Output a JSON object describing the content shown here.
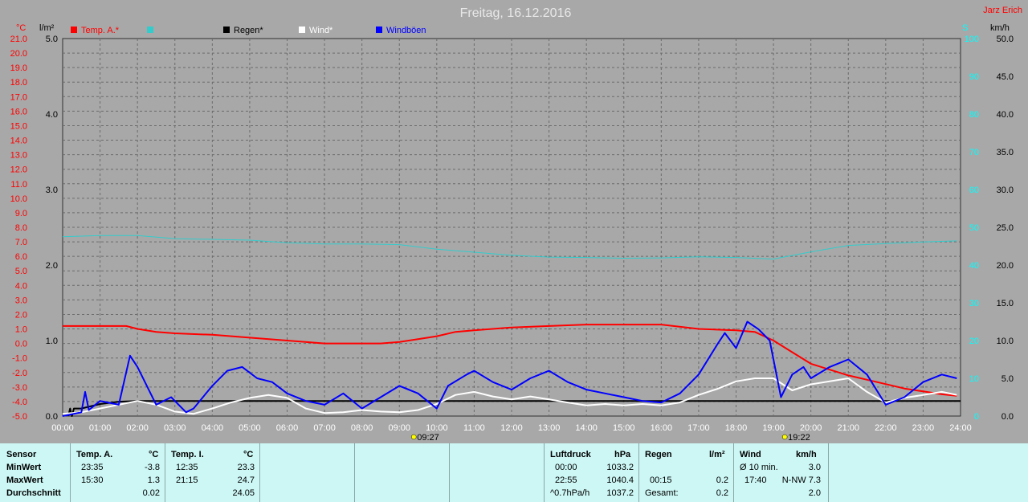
{
  "colors": {
    "background": "#a8a8a8",
    "plot_background": "#a8a8a8",
    "grid": "#6b6b6b",
    "temp": "#ff0000",
    "pressure": "#33cccc",
    "rain": "#000000",
    "wind": "#ffffff",
    "gust": "#0000ff",
    "left_axis": "#ff0000",
    "right_axis": "#00ffff",
    "stats_bg": "#ccf7f5"
  },
  "header": {
    "title": "Freitag, 16.12.2016",
    "author": "Jarz Erich",
    "unit_temp": "°C",
    "unit_rain": "l/m²",
    "unit_pressure": "S",
    "unit_wind": "km/h"
  },
  "sun": {
    "sunrise": "09:27",
    "sunset": "19:22",
    "sunrise_icon": "sunrise-icon",
    "sunset_icon": "sunset-icon"
  },
  "chart_data": {
    "type": "line",
    "title": "Freitag, 16.12.2016",
    "x_range_hours": [
      0,
      24
    ],
    "x_ticks": [
      "00:00",
      "01:00",
      "02:00",
      "03:00",
      "04:00",
      "05:00",
      "06:00",
      "07:00",
      "08:00",
      "09:00",
      "10:00",
      "11:00",
      "12:00",
      "13:00",
      "14:00",
      "15:00",
      "16:00",
      "17:00",
      "18:00",
      "19:00",
      "20:00",
      "21:00",
      "22:00",
      "23:00",
      "24:00"
    ],
    "temp_ticks": [
      "21.0",
      "20.0",
      "19.0",
      "18.0",
      "17.0",
      "16.0",
      "15.0",
      "14.0",
      "13.0",
      "12.0",
      "11.0",
      "10.0",
      "9.0",
      "8.0",
      "7.0",
      "6.0",
      "5.0",
      "4.0",
      "3.0",
      "2.0",
      "1.0",
      "0.0",
      "-1.0",
      "-2.0",
      "-3.0",
      "-4.0",
      "-5.0"
    ],
    "temp_range": [
      -5,
      21
    ],
    "rain_ticks": [
      "5.0",
      "4.0",
      "3.0",
      "2.0",
      "1.0",
      "0.0"
    ],
    "rain_range": [
      0,
      5
    ],
    "wind_ticks": [
      "50.0",
      "45.0",
      "40.0",
      "35.0",
      "30.0",
      "25.0",
      "20.0",
      "15.0",
      "10.0",
      "5.0",
      "0.0"
    ],
    "wind_range": [
      0,
      50
    ],
    "pressure_ticks": [
      "100",
      "90",
      "80",
      "70",
      "60",
      "50",
      "40",
      "30",
      "20",
      "10",
      "0"
    ],
    "pressure_range": [
      0,
      100
    ],
    "grid": true,
    "legend": [
      "Temp. A.*",
      "Regen*",
      "Wind*",
      "Windböen"
    ],
    "legend_colors": [
      "#ff0000",
      "#000000",
      "#ffffff",
      "#0000ff"
    ],
    "legend_pressure_color": "#33cccc",
    "series": [
      {
        "name": "Temp. A.*",
        "axis": "temp",
        "color": "#ff0000",
        "x": [
          0,
          1,
          1.7,
          2,
          2.5,
          3,
          4,
          5,
          6,
          7,
          8,
          8.5,
          9,
          9.5,
          10,
          10.5,
          11,
          12,
          13,
          14,
          15,
          16,
          17,
          18,
          18.5,
          19,
          19.5,
          20,
          21,
          22,
          22.5,
          23,
          23.5,
          23.9
        ],
        "y": [
          1.2,
          1.2,
          1.2,
          1.0,
          0.8,
          0.7,
          0.6,
          0.4,
          0.2,
          0.0,
          0.0,
          0.0,
          0.1,
          0.3,
          0.5,
          0.8,
          0.9,
          1.1,
          1.2,
          1.3,
          1.3,
          1.3,
          1.0,
          0.9,
          0.8,
          0.2,
          -0.6,
          -1.4,
          -2.2,
          -2.8,
          -3.1,
          -3.3,
          -3.5,
          -3.6
        ]
      },
      {
        "name": "Luftdruck",
        "axis": "pressure",
        "color": "#33cccc",
        "x": [
          0,
          1,
          2,
          3,
          4,
          5,
          6,
          7,
          8,
          9,
          10,
          11,
          12,
          13,
          14,
          15,
          16,
          17,
          18,
          19,
          20,
          21,
          22,
          23,
          23.9
        ],
        "y": [
          47.5,
          47.8,
          47.8,
          47.0,
          46.8,
          46.6,
          45.9,
          45.6,
          45.6,
          45.4,
          44.2,
          43.4,
          42.6,
          42.1,
          42.0,
          41.8,
          41.9,
          42.2,
          42.0,
          41.6,
          43.5,
          45.2,
          45.7,
          46.1,
          46.4
        ]
      },
      {
        "name": "Regen*",
        "axis": "rain",
        "color": "#000000",
        "x": [
          0.15,
          0.2,
          0.25,
          0.3,
          0.5,
          1.0,
          1.5,
          2.0,
          24
        ],
        "y": [
          0.0,
          0.1,
          0.0,
          0.1,
          0.1,
          0.16,
          0.19,
          0.2,
          0.2
        ]
      },
      {
        "name": "Wind*",
        "axis": "wind",
        "color": "#ffffff",
        "x": [
          0,
          0.5,
          1,
          1.5,
          2,
          2.5,
          3,
          3.5,
          4,
          4.5,
          5,
          5.5,
          6,
          6.5,
          7,
          7.5,
          8,
          8.5,
          9,
          9.5,
          10,
          10.5,
          11,
          11.5,
          12,
          12.5,
          13,
          13.5,
          14,
          14.5,
          15,
          15.5,
          16,
          16.5,
          17,
          17.5,
          18,
          18.5,
          19,
          19.5,
          20,
          20.5,
          21,
          21.5,
          22,
          22.5,
          23,
          23.5,
          23.9
        ],
        "y": [
          0.3,
          0.5,
          1.0,
          1.5,
          2.0,
          1.5,
          0.6,
          0.3,
          1.0,
          1.8,
          2.4,
          2.8,
          2.4,
          1.0,
          0.4,
          0.5,
          0.8,
          0.6,
          0.5,
          0.8,
          1.6,
          2.8,
          3.2,
          2.6,
          2.2,
          2.6,
          2.2,
          1.8,
          1.4,
          1.6,
          1.4,
          1.6,
          1.4,
          1.8,
          2.8,
          3.6,
          4.6,
          5.0,
          5.0,
          3.4,
          4.2,
          4.6,
          5.0,
          3.2,
          1.8,
          2.4,
          2.8,
          3.2,
          2.8
        ]
      },
      {
        "name": "Windböen",
        "axis": "wind",
        "color": "#0000ff",
        "x": [
          0,
          0.5,
          0.6,
          0.7,
          1.0,
          1.5,
          1.8,
          2.0,
          2.5,
          2.9,
          3.3,
          3.5,
          4.0,
          4.4,
          4.8,
          5.2,
          5.6,
          6.0,
          6.5,
          7.0,
          7.5,
          8.0,
          8.5,
          9.0,
          9.5,
          10.0,
          10.3,
          10.8,
          11.0,
          11.5,
          12.0,
          12.5,
          13.0,
          13.5,
          14.0,
          14.5,
          15.0,
          15.5,
          16.0,
          16.5,
          17.0,
          17.5,
          17.7,
          18.0,
          18.3,
          18.6,
          18.9,
          19.2,
          19.5,
          19.8,
          20.0,
          20.5,
          21.0,
          21.5,
          22.0,
          22.5,
          23.0,
          23.5,
          23.9
        ],
        "y": [
          0,
          0.5,
          3.2,
          0.8,
          2.0,
          1.5,
          8.0,
          6.5,
          1.5,
          2.5,
          0.5,
          1.0,
          4.0,
          6.0,
          6.5,
          5.0,
          4.5,
          3.0,
          2.0,
          1.5,
          3.0,
          1.0,
          2.5,
          4.0,
          3.0,
          1.0,
          4.0,
          5.5,
          6.0,
          4.5,
          3.5,
          5.0,
          6.0,
          4.5,
          3.5,
          3.0,
          2.5,
          2.0,
          1.8,
          3.0,
          5.5,
          9.5,
          11.0,
          9.0,
          12.5,
          11.5,
          10.0,
          2.5,
          5.5,
          6.5,
          5.0,
          6.5,
          7.5,
          5.5,
          1.5,
          2.5,
          4.5,
          5.5,
          5.0
        ]
      }
    ]
  },
  "stats": {
    "headers": {
      "sensor": "Sensor",
      "temp_a": "Temp. A.",
      "temp_a_unit": "°C",
      "temp_i": "Temp. I.",
      "temp_i_unit": "°C",
      "pressure": "Luftdruck",
      "pressure_unit": "hPa",
      "rain": "Regen",
      "rain_unit": "l/m²",
      "wind": "Wind",
      "wind_unit": "km/h"
    },
    "rows": [
      {
        "label": "MinWert",
        "temp_a_time": "23:35",
        "temp_a_val": "-3.8",
        "temp_i_time": "12:35",
        "temp_i_val": "23.3",
        "pressure_time": "00:00",
        "pressure_val": "1033.2",
        "rain_time": "",
        "rain_val": "",
        "wind_time": "Ø 10 min.",
        "wind_val": "3.0"
      },
      {
        "label": "MaxWert",
        "temp_a_time": "15:30",
        "temp_a_val": "1.3",
        "temp_i_time": "21:15",
        "temp_i_val": "24.7",
        "pressure_time": "22:55",
        "pressure_val": "1040.4",
        "rain_time": "00:15",
        "rain_val": "0.2",
        "wind_time": "17:40",
        "wind_val": "N-NW 7.3"
      },
      {
        "label": "Durchschnitt",
        "temp_a_time": "",
        "temp_a_val": "0.02",
        "temp_i_time": "",
        "temp_i_val": "24.05",
        "pressure_time": "^0.7hPa/h",
        "pressure_val": "1037.2",
        "rain_time": "Gesamt:",
        "rain_val": "0.2",
        "wind_time": "",
        "wind_val": "2.0"
      }
    ]
  }
}
